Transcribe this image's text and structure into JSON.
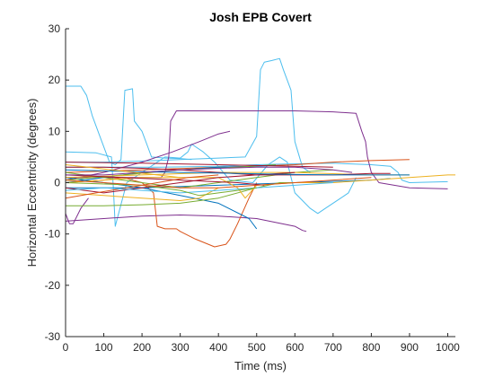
{
  "chart_data": {
    "type": "line",
    "title": "Josh EPB Covert",
    "xlabel": "Time (ms)",
    "ylabel": "Horizontal Eccentricity (degrees)",
    "xlim": [
      0,
      1020
    ],
    "ylim": [
      -30,
      30
    ],
    "xticks": [
      0,
      100,
      200,
      300,
      400,
      500,
      600,
      700,
      800,
      900,
      1000
    ],
    "yticks": [
      -30,
      -20,
      -10,
      0,
      10,
      20,
      30
    ],
    "grid": false,
    "legend": "none",
    "colors": [
      "#0072BD",
      "#D95319",
      "#EDB120",
      "#7E2F8E",
      "#77AC30",
      "#4DBEEE",
      "#A2142F"
    ],
    "series": [
      {
        "color": "#4DBEEE",
        "x": [
          0,
          40,
          55,
          70,
          95,
          115,
          130,
          145,
          155,
          175,
          180,
          200,
          215,
          225,
          260,
          300,
          330
        ],
        "y": [
          18.8,
          18.8,
          17,
          13,
          8,
          4,
          3.5,
          4.5,
          18,
          18.3,
          12,
          10,
          7,
          5,
          4.8,
          4.7,
          4.5
        ]
      },
      {
        "color": "#4DBEEE",
        "x": [
          0,
          100,
          200,
          300,
          400,
          470,
          500,
          510,
          520,
          540,
          560,
          570,
          590,
          600,
          620,
          640
        ],
        "y": [
          4,
          4,
          4.2,
          4.5,
          4.8,
          5,
          9,
          22,
          23.5,
          23.8,
          24.2,
          22,
          18,
          8,
          3,
          2
        ]
      },
      {
        "color": "#4DBEEE",
        "x": [
          0,
          80,
          120,
          125,
          130,
          160,
          260,
          300,
          320,
          330,
          340,
          360,
          390,
          430,
          490,
          530,
          560,
          580,
          600,
          640,
          660,
          680,
          720,
          740,
          760
        ],
        "y": [
          6,
          5.8,
          5,
          -1,
          -8.5,
          0,
          5,
          4.8,
          6,
          7.5,
          7,
          6,
          4,
          0.5,
          0,
          3.5,
          5,
          4,
          -2,
          -5,
          -6,
          -5,
          -3,
          -2,
          1
        ]
      },
      {
        "color": "#4DBEEE",
        "x": [
          0,
          250,
          400,
          500,
          560,
          700,
          800,
          850,
          870,
          880,
          900,
          1000
        ],
        "y": [
          3,
          3,
          3.2,
          3.5,
          3.6,
          3.8,
          3.5,
          3.2,
          2,
          0.5,
          0,
          0.2
        ]
      },
      {
        "color": "#7E2F8E",
        "x": [
          0,
          180,
          250,
          260,
          270,
          275,
          290,
          500,
          600,
          700,
          760,
          775,
          785,
          790,
          800,
          820,
          900,
          1000
        ],
        "y": [
          1,
          1,
          1,
          2,
          5,
          12,
          14,
          14,
          14,
          13.8,
          13.5,
          10,
          8,
          5,
          2,
          0,
          -1,
          -1.2
        ]
      },
      {
        "color": "#7E2F8E",
        "x": [
          0,
          100,
          200,
          280,
          350,
          400,
          430
        ],
        "y": [
          0.5,
          2,
          4,
          6,
          8,
          9.5,
          10
        ]
      },
      {
        "color": "#7E2F8E",
        "x": [
          0,
          100,
          200,
          300,
          400,
          500,
          600,
          620,
          630
        ],
        "y": [
          -7.5,
          -7,
          -6.5,
          -6.3,
          -6.5,
          -7,
          -8.5,
          -9.3,
          -9.5
        ]
      },
      {
        "color": "#7E2F8E",
        "x": [
          0,
          10,
          20,
          40,
          60
        ],
        "y": [
          -6,
          -8,
          -8,
          -5,
          -3
        ]
      },
      {
        "color": "#D95319",
        "x": [
          0,
          100,
          150,
          200,
          230,
          240,
          260,
          290,
          300,
          340,
          390,
          420,
          430,
          450,
          480,
          500
        ],
        "y": [
          0,
          0.5,
          1,
          0,
          -2,
          -8.5,
          -9,
          -9,
          -9.5,
          -11,
          -12.5,
          -12,
          -11,
          -8,
          -3,
          0
        ]
      },
      {
        "color": "#D95319",
        "x": [
          0,
          200,
          400,
          600,
          700,
          800,
          900
        ],
        "y": [
          2,
          2.5,
          3,
          3.5,
          4,
          4.3,
          4.5
        ]
      },
      {
        "color": "#0072BD",
        "x": [
          0,
          100,
          200,
          300,
          400,
          480,
          500
        ],
        "y": [
          1,
          0,
          -1,
          -2.5,
          -4,
          -7,
          -9
        ]
      },
      {
        "color": "#0072BD",
        "x": [
          0,
          100,
          200,
          300,
          400,
          500,
          550
        ],
        "y": [
          0,
          1,
          2,
          2.5,
          3,
          3.2,
          3.4
        ]
      },
      {
        "color": "#0072BD",
        "x": [
          0,
          200,
          400,
          600,
          800,
          850
        ],
        "y": [
          -1,
          -1,
          -0.5,
          0,
          0.5,
          0.8
        ]
      },
      {
        "color": "#77AC30",
        "x": [
          0,
          100,
          200,
          300,
          400,
          500,
          560,
          600
        ],
        "y": [
          -4.5,
          -4.5,
          -4.3,
          -4,
          -3,
          -1,
          0,
          0
        ]
      },
      {
        "color": "#77AC30",
        "x": [
          0,
          100,
          200,
          300,
          400,
          500,
          600,
          700
        ],
        "y": [
          2,
          1,
          0,
          -1,
          0,
          1,
          2,
          2.5
        ]
      },
      {
        "color": "#77AC30",
        "x": [
          0,
          150,
          300,
          450,
          550
        ],
        "y": [
          0.5,
          1.5,
          2.5,
          3,
          3.5
        ]
      },
      {
        "color": "#EDB120",
        "x": [
          0,
          100,
          200,
          300,
          400,
          450,
          470,
          500,
          600,
          700,
          800,
          900,
          1000,
          1020
        ],
        "y": [
          0,
          0.5,
          1,
          1,
          1,
          -1,
          -3,
          -0.5,
          0,
          0,
          0.5,
          1,
          1.5,
          1.5
        ]
      },
      {
        "color": "#EDB120",
        "x": [
          0,
          100,
          200,
          300,
          350,
          400
        ],
        "y": [
          -2,
          -2.5,
          -3,
          -3.5,
          -3,
          -1
        ]
      },
      {
        "color": "#EDB120",
        "x": [
          0,
          200,
          400,
          600,
          800,
          900
        ],
        "y": [
          1,
          1.5,
          2,
          2,
          1.5,
          1.5
        ]
      },
      {
        "color": "#A2142F",
        "x": [
          0,
          100,
          200,
          300,
          400,
          500,
          600,
          700,
          800,
          850
        ],
        "y": [
          3,
          3,
          2.8,
          2.5,
          2,
          1.5,
          1.5,
          1.5,
          1.8,
          1.8
        ]
      },
      {
        "color": "#A2142F",
        "x": [
          0,
          50,
          100,
          200,
          300,
          400,
          500,
          600
        ],
        "y": [
          -1,
          -1.5,
          -2,
          -1,
          0,
          1,
          1.5,
          2
        ]
      },
      {
        "color": "#A2142F",
        "x": [
          0,
          150,
          300,
          450,
          520
        ],
        "y": [
          1.5,
          1,
          0.5,
          0,
          -0.5
        ]
      },
      {
        "color": "#D95319",
        "x": [
          0,
          80,
          160,
          240,
          320,
          400
        ],
        "y": [
          -3,
          -2,
          -1,
          0,
          1,
          1.5
        ]
      },
      {
        "color": "#4DBEEE",
        "x": [
          0,
          100,
          200,
          300,
          400,
          500,
          600,
          700
        ],
        "y": [
          -1.5,
          -1,
          -1.5,
          -2,
          -1.5,
          -1,
          -0.5,
          0
        ]
      },
      {
        "color": "#0072BD",
        "x": [
          0,
          150,
          300,
          450,
          600,
          750,
          900
        ],
        "y": [
          2.5,
          2.2,
          2,
          1.8,
          1.6,
          1.5,
          1.5
        ]
      },
      {
        "color": "#77AC30",
        "x": [
          0,
          200,
          300,
          350,
          400,
          500
        ],
        "y": [
          0,
          -0.5,
          -1.5,
          -2.5,
          -2,
          -1
        ]
      },
      {
        "color": "#7E2F8E",
        "x": [
          0,
          100,
          200,
          300,
          400,
          500,
          600,
          700,
          750
        ],
        "y": [
          1.5,
          1.5,
          2,
          2.5,
          2.8,
          3,
          3,
          2.5,
          2
        ]
      },
      {
        "color": "#EDB120",
        "x": [
          0,
          60,
          120,
          180,
          240,
          300
        ],
        "y": [
          3.5,
          3,
          2.5,
          2,
          1.5,
          1
        ]
      },
      {
        "color": "#D95319",
        "x": [
          0,
          100,
          200,
          300,
          400,
          500,
          600,
          700,
          800
        ],
        "y": [
          0.5,
          0,
          -0.5,
          -1,
          -1,
          -0.5,
          0,
          0.5,
          1
        ]
      },
      {
        "color": "#A2142F",
        "x": [
          0,
          200,
          400,
          600,
          700
        ],
        "y": [
          4,
          3.8,
          3.5,
          3.2,
          3
        ]
      }
    ]
  }
}
